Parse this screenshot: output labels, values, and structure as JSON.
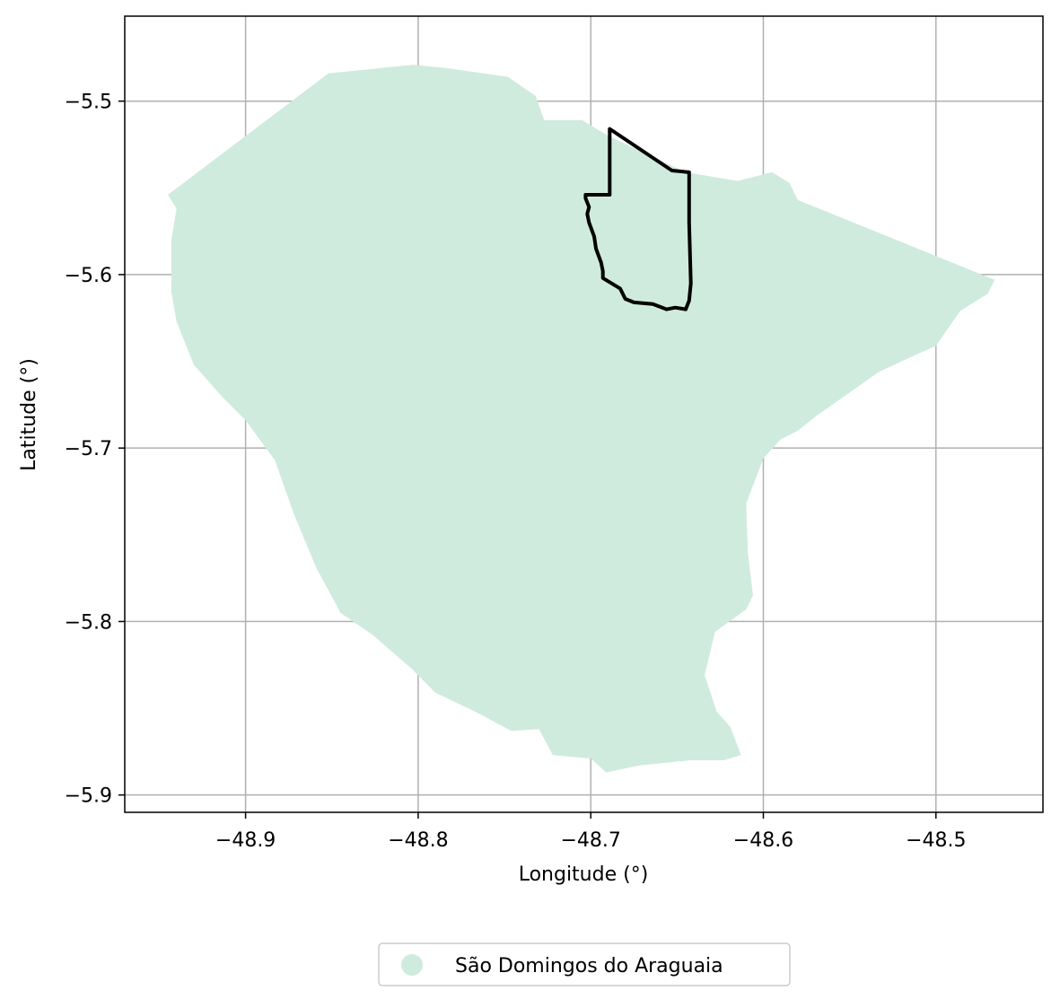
{
  "chart_data": {
    "type": "map",
    "xlabel": "Longitude (°)",
    "ylabel": "Latitude (°)",
    "xlim": [
      -48.97,
      -48.438
    ],
    "ylim": [
      -5.91,
      -5.451
    ],
    "grid": true,
    "xticks": [
      -48.9,
      -48.8,
      -48.7,
      -48.6,
      -48.5
    ],
    "xtick_labels": [
      "−48.9",
      "−48.8",
      "−48.7",
      "−48.6",
      "−48.5"
    ],
    "yticks": [
      -5.5,
      -5.6,
      -5.7,
      -5.8,
      -5.9
    ],
    "ytick_labels": [
      "−5.5",
      "−5.6",
      "−5.7",
      "−5.8",
      "−5.9"
    ],
    "legend": {
      "placement": "bottom-center",
      "entries": [
        {
          "label": "São Domingos do Araguaia",
          "color": "#cfebdd"
        }
      ]
    },
    "municipality": {
      "name": "São Domingos do Araguaia",
      "fill": "#cfebdd",
      "polygon": [
        [
          -48.945,
          -5.554
        ],
        [
          -48.852,
          -5.484
        ],
        [
          -48.803,
          -5.479
        ],
        [
          -48.783,
          -5.481
        ],
        [
          -48.748,
          -5.486
        ],
        [
          -48.732,
          -5.497
        ],
        [
          -48.727,
          -5.511
        ],
        [
          -48.705,
          -5.511
        ],
        [
          -48.69,
          -5.52
        ],
        [
          -48.645,
          -5.541
        ],
        [
          -48.615,
          -5.546
        ],
        [
          -48.595,
          -5.541
        ],
        [
          -48.585,
          -5.547
        ],
        [
          -48.58,
          -5.557
        ],
        [
          -48.466,
          -5.603
        ],
        [
          -48.47,
          -5.611
        ],
        [
          -48.486,
          -5.621
        ],
        [
          -48.5,
          -5.641
        ],
        [
          -48.52,
          -5.65
        ],
        [
          -48.533,
          -5.656
        ],
        [
          -48.55,
          -5.668
        ],
        [
          -48.57,
          -5.682
        ],
        [
          -48.58,
          -5.69
        ],
        [
          -48.59,
          -5.695
        ],
        [
          -48.6,
          -5.706
        ],
        [
          -48.61,
          -5.732
        ],
        [
          -48.609,
          -5.76
        ],
        [
          -48.606,
          -5.785
        ],
        [
          -48.61,
          -5.793
        ],
        [
          -48.628,
          -5.806
        ],
        [
          -48.634,
          -5.831
        ],
        [
          -48.627,
          -5.852
        ],
        [
          -48.619,
          -5.861
        ],
        [
          -48.613,
          -5.877
        ],
        [
          -48.623,
          -5.88
        ],
        [
          -48.642,
          -5.88
        ],
        [
          -48.672,
          -5.883
        ],
        [
          -48.691,
          -5.887
        ],
        [
          -48.7,
          -5.879
        ],
        [
          -48.722,
          -5.877
        ],
        [
          -48.73,
          -5.862
        ],
        [
          -48.746,
          -5.863
        ],
        [
          -48.765,
          -5.853
        ],
        [
          -48.79,
          -5.841
        ],
        [
          -48.804,
          -5.827
        ],
        [
          -48.826,
          -5.808
        ],
        [
          -48.845,
          -5.795
        ],
        [
          -48.859,
          -5.769
        ],
        [
          -48.872,
          -5.738
        ],
        [
          -48.883,
          -5.707
        ],
        [
          -48.9,
          -5.684
        ],
        [
          -48.913,
          -5.671
        ],
        [
          -48.93,
          -5.652
        ],
        [
          -48.94,
          -5.627
        ],
        [
          -48.943,
          -5.61
        ],
        [
          -48.943,
          -5.58
        ],
        [
          -48.94,
          -5.562
        ]
      ]
    },
    "outline": {
      "stroke": "#000000",
      "polygon": [
        [
          -48.689,
          -5.516
        ],
        [
          -48.653,
          -5.54
        ],
        [
          -48.643,
          -5.541
        ],
        [
          -48.643,
          -5.57
        ],
        [
          -48.642,
          -5.605
        ],
        [
          -48.643,
          -5.615
        ],
        [
          -48.645,
          -5.62
        ],
        [
          -48.651,
          -5.619
        ],
        [
          -48.656,
          -5.62
        ],
        [
          -48.664,
          -5.617
        ],
        [
          -48.675,
          -5.616
        ],
        [
          -48.68,
          -5.614
        ],
        [
          -48.683,
          -5.608
        ],
        [
          -48.693,
          -5.602
        ],
        [
          -48.693,
          -5.598
        ],
        [
          -48.694,
          -5.593
        ],
        [
          -48.697,
          -5.585
        ],
        [
          -48.698,
          -5.578
        ],
        [
          -48.701,
          -5.57
        ],
        [
          -48.702,
          -5.565
        ],
        [
          -48.701,
          -5.561
        ],
        [
          -48.703,
          -5.556
        ],
        [
          -48.703,
          -5.554
        ],
        [
          -48.689,
          -5.554
        ]
      ]
    }
  }
}
